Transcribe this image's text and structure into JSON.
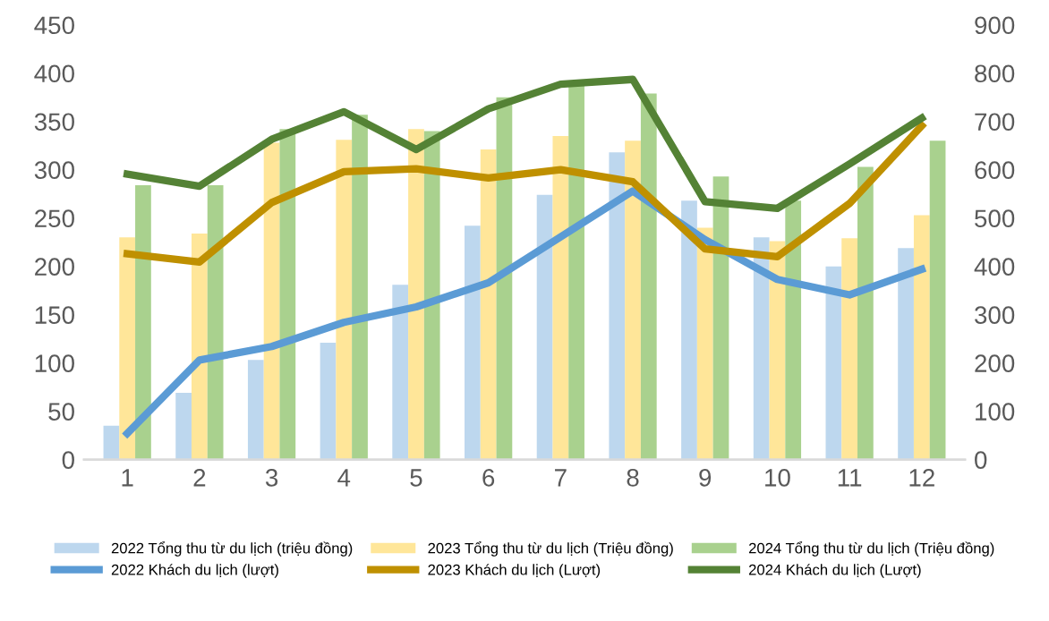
{
  "chart_data": {
    "type": "bar",
    "categories": [
      "1",
      "2",
      "3",
      "4",
      "5",
      "6",
      "7",
      "8",
      "9",
      "10",
      "11",
      "12"
    ],
    "ylim": [
      0,
      450
    ],
    "yticks": [
      0,
      50,
      100,
      150,
      200,
      250,
      300,
      350,
      400,
      450
    ],
    "y2lim": [
      0,
      900
    ],
    "y2ticks": [
      0,
      100,
      200,
      300,
      400,
      500,
      600,
      700,
      800,
      900
    ],
    "grid": false,
    "legend": "bottom",
    "series": [
      {
        "name": "2022 Tổng thu từ du lịch (triệu đồng)",
        "color": "#bdd7ee",
        "values": [
          35,
          69,
          103,
          121,
          181,
          242,
          274,
          318,
          268,
          230,
          200,
          219
        ]
      },
      {
        "name": "2023 Tổng thu từ du lịch (Triệu đồng)",
        "color": "#ffe699",
        "values": [
          230,
          234,
          328,
          331,
          342,
          321,
          335,
          330,
          240,
          226,
          229,
          253
        ]
      },
      {
        "name": "2024 Tổng thu từ du lịch (Triệu đồng)",
        "color": "#a9d18e",
        "values": [
          284,
          284,
          342,
          357,
          340,
          375,
          389,
          379,
          293,
          268,
          303,
          330
        ]
      },
      {
        "name": "2022 Khách du lịch (lượt)",
        "type": "line",
        "axis": "y2",
        "color": "#5b9bd5",
        "values": [
          54,
          206,
          234,
          284,
          316,
          366,
          461,
          556,
          455,
          373,
          341,
          394
        ]
      },
      {
        "name": "2023 Khách du lịch (Lượt)",
        "type": "line",
        "axis": "y2",
        "color": "#bf9000",
        "values": [
          426,
          409,
          532,
          596,
          602,
          583,
          600,
          575,
          436,
          420,
          530,
          691
        ]
      },
      {
        "name": "2024 Khách du lịch (Lượt)",
        "type": "line",
        "axis": "y2",
        "color": "#548235",
        "values": [
          591,
          566,
          663,
          720,
          642,
          726,
          777,
          787,
          534,
          520,
          612,
          707
        ]
      }
    ]
  }
}
